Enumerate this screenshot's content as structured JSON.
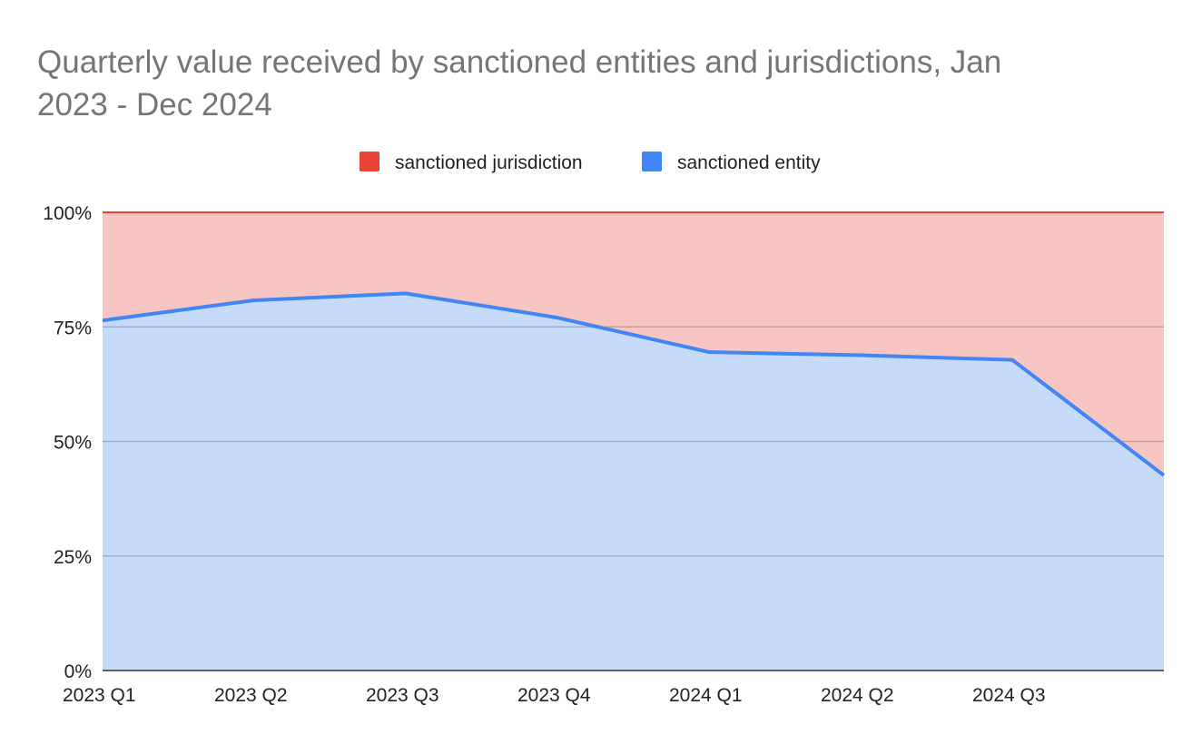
{
  "chart_data": {
    "type": "area",
    "stacked": "percent",
    "title_lines": [
      "Quarterly value received by sanctioned entities and jurisdictions, Jan",
      "2023 - Dec 2024"
    ],
    "xlabel": "",
    "ylabel": "",
    "categories": [
      "2023 Q1",
      "2023 Q2",
      "2023 Q3",
      "2023 Q4",
      "2024 Q1",
      "2024 Q2",
      "2024 Q3",
      ""
    ],
    "y_ticks": [
      "0%",
      "25%",
      "50%",
      "75%",
      "100%"
    ],
    "ylim": [
      0,
      100
    ],
    "grid": true,
    "legend_position": "top",
    "series": [
      {
        "name": "sanctioned entity",
        "color": "#4285f4",
        "fill": "#c6dafa",
        "values": [
          76.4,
          80.8,
          82.3,
          77.0,
          69.5,
          68.8,
          67.8,
          42.6
        ]
      },
      {
        "name": "sanctioned jurisdiction",
        "color": "#ea4335",
        "fill": "#f8c6c2",
        "values": [
          23.6,
          19.2,
          17.7,
          23.0,
          30.5,
          31.2,
          32.2,
          57.4
        ]
      }
    ]
  }
}
